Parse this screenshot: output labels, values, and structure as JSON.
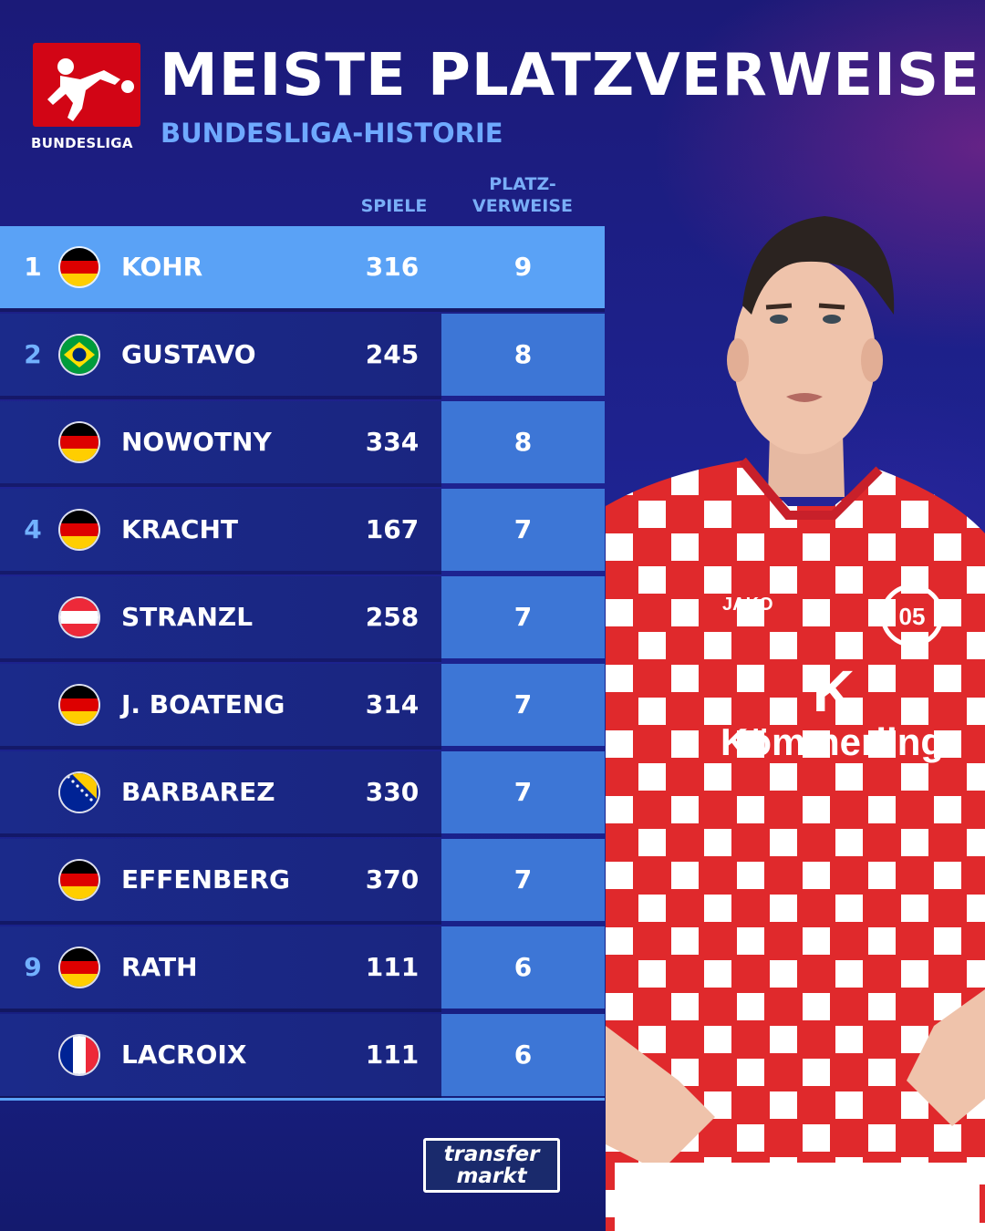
{
  "header": {
    "logo_text": "BUNDESLIGA",
    "title": "MEISTE PLATZVERWEISE",
    "subtitle": "BUNDESLIGA-HISTORIE"
  },
  "columns": {
    "spiele": "SPIELE",
    "platzverweise_line1": "PLATZ-",
    "platzverweise_line2": "VERWEISE"
  },
  "rows": [
    {
      "rank": "1",
      "flag": "germany-flag-icon",
      "name": "KOHR",
      "spiele": "316",
      "platzverweise": "9"
    },
    {
      "rank": "2",
      "flag": "brazil-flag-icon",
      "name": "GUSTAVO",
      "spiele": "245",
      "platzverweise": "8"
    },
    {
      "rank": "",
      "flag": "germany-flag-icon",
      "name": "NOWOTNY",
      "spiele": "334",
      "platzverweise": "8"
    },
    {
      "rank": "4",
      "flag": "germany-flag-icon",
      "name": "KRACHT",
      "spiele": "167",
      "platzverweise": "7"
    },
    {
      "rank": "",
      "flag": "austria-flag-icon",
      "name": "STRANZL",
      "spiele": "258",
      "platzverweise": "7"
    },
    {
      "rank": "",
      "flag": "germany-flag-icon",
      "name": "J. BOATENG",
      "spiele": "314",
      "platzverweise": "7"
    },
    {
      "rank": "",
      "flag": "bosnia-flag-icon",
      "name": "BARBAREZ",
      "spiele": "330",
      "platzverweise": "7"
    },
    {
      "rank": "",
      "flag": "germany-flag-icon",
      "name": "EFFENBERG",
      "spiele": "370",
      "platzverweise": "7"
    },
    {
      "rank": "9",
      "flag": "germany-flag-icon",
      "name": "RATH",
      "spiele": "111",
      "platzverweise": "6"
    },
    {
      "rank": "",
      "flag": "france-flag-icon",
      "name": "LACROIX",
      "spiele": "111",
      "platzverweise": "6"
    }
  ],
  "player_shirt": {
    "brand": "JAKO",
    "sponsor": "Kömmerling"
  },
  "footer": {
    "logo_line1": "transfer",
    "logo_line2": "markt"
  },
  "colors": {
    "background": "#1e2391",
    "accent_blue": "#5aa2f6",
    "cell_blue": "#3d76d6",
    "bundesliga_red": "#d20515",
    "shirt_red": "#e0292c"
  }
}
